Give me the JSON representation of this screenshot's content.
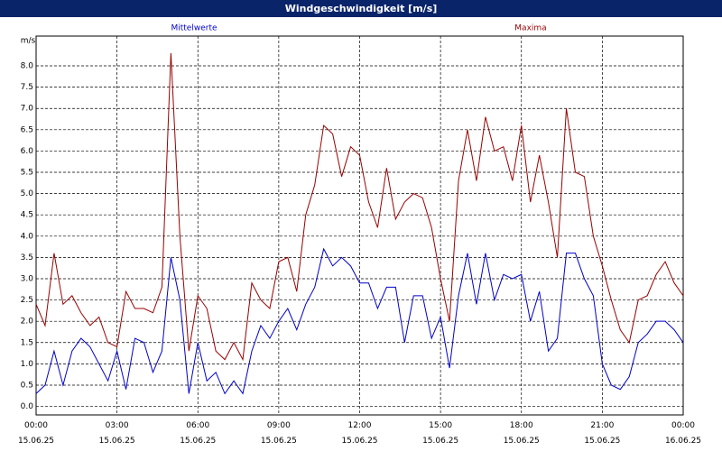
{
  "chart_data": {
    "type": "line",
    "title": "Windgeschwindigkeit [m/s]",
    "y_label": "m/s",
    "x": [
      0,
      20,
      40,
      60,
      80,
      100,
      120,
      140,
      160,
      180,
      200,
      220,
      240,
      260,
      280,
      300,
      320,
      340,
      360,
      380,
      400,
      420,
      440,
      460,
      480,
      500,
      520,
      540,
      560,
      580,
      600,
      620,
      640,
      660,
      680,
      700,
      720,
      740,
      760,
      780,
      800,
      820,
      840,
      860,
      880,
      900,
      920,
      940,
      960,
      980,
      1000,
      1020,
      1040,
      1060,
      1080,
      1100,
      1120,
      1140,
      1160,
      1180,
      1200,
      1220,
      1240,
      1260,
      1280,
      1300,
      1320,
      1340,
      1360,
      1380,
      1400,
      1420,
      1440
    ],
    "series": [
      {
        "name": "Mittelwerte",
        "color": "#0000cc",
        "values": [
          0.3,
          0.5,
          1.3,
          0.5,
          1.3,
          1.6,
          1.4,
          1.0,
          0.6,
          1.3,
          0.4,
          1.6,
          1.5,
          0.8,
          1.3,
          3.5,
          2.5,
          0.3,
          1.5,
          0.6,
          0.8,
          0.3,
          0.6,
          0.3,
          1.3,
          1.9,
          1.6,
          2.0,
          2.3,
          1.8,
          2.4,
          2.8,
          3.7,
          3.3,
          3.5,
          3.3,
          2.9,
          2.9,
          2.3,
          2.8,
          2.8,
          1.5,
          2.6,
          2.6,
          1.6,
          2.1,
          0.9,
          2.6,
          3.6,
          2.4,
          3.6,
          2.5,
          3.1,
          3.0,
          3.1,
          2.0,
          2.7,
          1.3,
          1.6,
          3.6,
          3.6,
          3.0,
          2.6,
          1.0,
          0.5,
          0.4,
          0.7,
          1.5,
          1.7,
          2.0,
          2.0,
          1.8,
          1.5
        ]
      },
      {
        "name": "Maxima",
        "color": "#990000",
        "values": [
          2.4,
          1.9,
          3.6,
          2.4,
          2.6,
          2.2,
          1.9,
          2.1,
          1.5,
          1.4,
          2.7,
          2.3,
          2.3,
          2.2,
          2.8,
          8.3,
          4.0,
          1.3,
          2.6,
          2.3,
          1.3,
          1.1,
          1.5,
          1.1,
          2.9,
          2.5,
          2.3,
          3.4,
          3.5,
          2.7,
          4.5,
          5.2,
          6.6,
          6.4,
          5.4,
          6.1,
          5.9,
          4.8,
          4.2,
          5.6,
          4.4,
          4.8,
          5.0,
          4.9,
          4.2,
          3.0,
          2.0,
          5.3,
          6.5,
          5.3,
          6.8,
          6.0,
          6.1,
          5.3,
          6.6,
          4.8,
          5.9,
          4.8,
          3.5,
          7.0,
          5.5,
          5.4,
          4.0,
          3.3,
          2.5,
          1.8,
          1.5,
          2.5,
          2.6,
          3.1,
          3.4,
          2.9,
          2.6
        ]
      }
    ],
    "xlim": [
      0,
      1440
    ],
    "xticks": [
      {
        "value": 0,
        "label": "00:00\n15.06.25"
      },
      {
        "value": 180,
        "label": "03:00\n15.06.25"
      },
      {
        "value": 360,
        "label": "06:00\n15.06.25"
      },
      {
        "value": 540,
        "label": "09:00\n15.06.25"
      },
      {
        "value": 720,
        "label": "12:00\n15.06.25"
      },
      {
        "value": 900,
        "label": "15:00\n15.06.25"
      },
      {
        "value": 1080,
        "label": "18:00\n15.06.25"
      },
      {
        "value": 1260,
        "label": "21:00\n15.06.25"
      },
      {
        "value": 1440,
        "label": "00:00\n16.06.25"
      }
    ],
    "ylim": [
      -0.2,
      8.7
    ],
    "yticks": [
      {
        "value": 0,
        "label": "0.0"
      },
      {
        "value": 0.5,
        "label": "0.5"
      },
      {
        "value": 1,
        "label": "1.0"
      },
      {
        "value": 1.5,
        "label": "1.5"
      },
      {
        "value": 2,
        "label": "2.0"
      },
      {
        "value": 2.5,
        "label": "2.5"
      },
      {
        "value": 3,
        "label": "3.0"
      },
      {
        "value": 3.5,
        "label": "3.5"
      },
      {
        "value": 4,
        "label": "4.0"
      },
      {
        "value": 4.5,
        "label": "4.5"
      },
      {
        "value": 5,
        "label": "5.0"
      },
      {
        "value": 5.5,
        "label": "5.5"
      },
      {
        "value": 6,
        "label": "6.0"
      },
      {
        "value": 6.5,
        "label": "6.5"
      },
      {
        "value": 7,
        "label": "7.0"
      },
      {
        "value": 7.5,
        "label": "7.5"
      },
      {
        "value": 8,
        "label": "8.0"
      }
    ],
    "grid": true
  }
}
